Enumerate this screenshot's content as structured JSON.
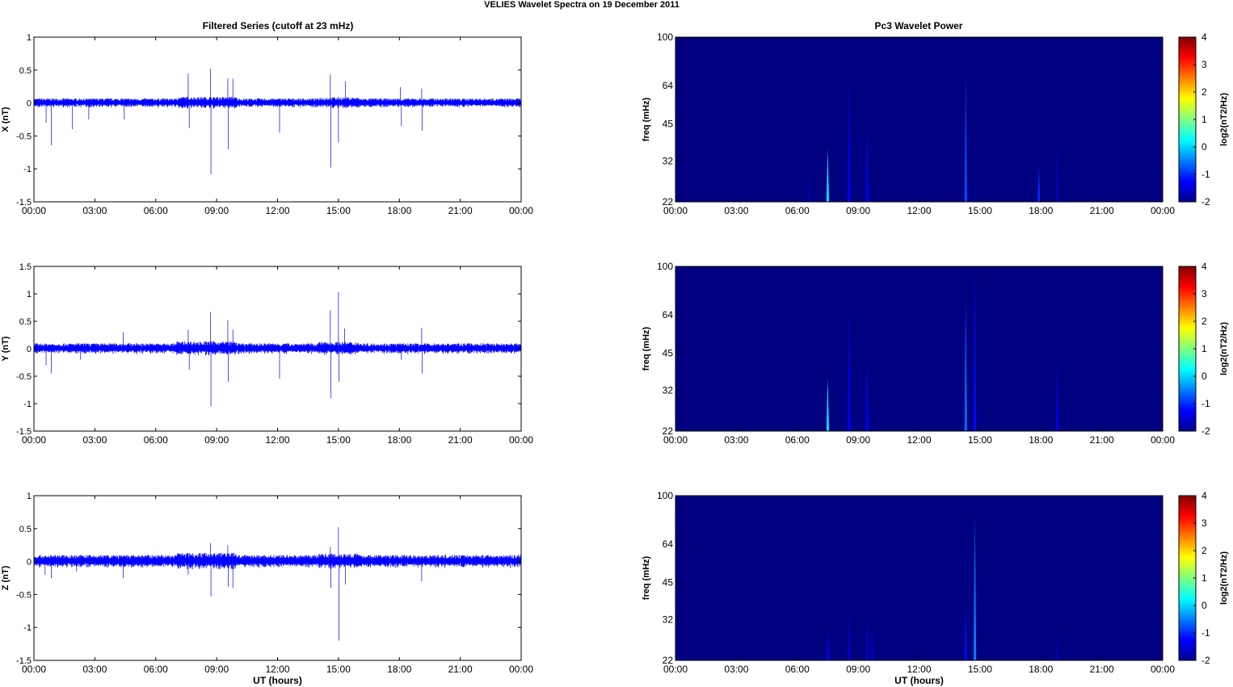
{
  "figure": {
    "title": "VELIES Wavelet Spectra on 19 December  2011",
    "left_column_title": "Filtered Series (cutoff at 23 mHz)",
    "right_column_title": "Pc3 Wavelet Power"
  },
  "colorbar": {
    "label": "log2(nT2/Hz)",
    "ticks": [
      "4",
      "3",
      "2",
      "1",
      "0",
      "-1",
      "-2"
    ],
    "range": [
      -2,
      4
    ],
    "colormap": "jet"
  },
  "colors": {
    "trace": "#0000ff",
    "background": "#00008f"
  },
  "chart_data": [
    {
      "type": "line",
      "title": "Filtered Series (cutoff at 23 mHz)",
      "xlabel": "",
      "ylabel": "X (nT)",
      "x_ticks": [
        "00:00",
        "03:00",
        "06:00",
        "09:00",
        "12:00",
        "15:00",
        "18:00",
        "21:00",
        "00:00"
      ],
      "y_ticks": [
        "1",
        "0.5",
        "0",
        "-0.5",
        "-1",
        "-1.5"
      ],
      "xlim_hours": [
        0,
        24
      ],
      "ylim": [
        -1.5,
        1
      ],
      "noise_band": 0.07,
      "spikes": [
        {
          "t": 0.6,
          "v": -0.3
        },
        {
          "t": 0.85,
          "v": -0.64
        },
        {
          "t": 1.9,
          "v": -0.4
        },
        {
          "t": 2.7,
          "v": -0.25
        },
        {
          "t": 4.45,
          "v": -0.25
        },
        {
          "t": 7.6,
          "v": 0.45
        },
        {
          "t": 7.65,
          "v": -0.38
        },
        {
          "t": 8.7,
          "v": 0.52
        },
        {
          "t": 8.72,
          "v": -1.08
        },
        {
          "t": 9.55,
          "v": 0.37
        },
        {
          "t": 9.57,
          "v": -0.7
        },
        {
          "t": 9.8,
          "v": 0.37
        },
        {
          "t": 12.1,
          "v": -0.45
        },
        {
          "t": 14.6,
          "v": 0.43
        },
        {
          "t": 14.62,
          "v": -0.98
        },
        {
          "t": 15.0,
          "v": -0.6
        },
        {
          "t": 15.35,
          "v": 0.33
        },
        {
          "t": 18.05,
          "v": 0.24
        },
        {
          "t": 18.1,
          "v": -0.35
        },
        {
          "t": 19.1,
          "v": 0.22
        },
        {
          "t": 19.12,
          "v": -0.42
        }
      ]
    },
    {
      "type": "heatmap",
      "title": "Pc3 Wavelet Power",
      "xlabel": "",
      "ylabel": "freq (mHz)",
      "x_ticks": [
        "00:00",
        "03:00",
        "06:00",
        "09:00",
        "12:00",
        "15:00",
        "18:00",
        "21:00",
        "00:00"
      ],
      "y_ticks": [
        "100",
        "64",
        "45",
        "32",
        "22"
      ],
      "xlim_hours": [
        0,
        24
      ],
      "ylim_mHz": [
        22,
        100
      ],
      "yscale": "log",
      "background_level": -2,
      "features": [
        {
          "t": 6.6,
          "f_top": 30,
          "level": -1.7
        },
        {
          "t": 7.5,
          "f_top": 36,
          "level": 0.1
        },
        {
          "t": 8.55,
          "f_top": 70,
          "level": -1.3
        },
        {
          "t": 9.45,
          "f_top": 43,
          "level": -1.3
        },
        {
          "t": 14.3,
          "f_top": 70,
          "level": -0.8
        },
        {
          "t": 17.9,
          "f_top": 31,
          "level": -1.0
        },
        {
          "t": 18.8,
          "f_top": 40,
          "level": -1.6
        }
      ]
    },
    {
      "type": "line",
      "title": "",
      "xlabel": "",
      "ylabel": "Y (nT)",
      "x_ticks": [
        "00:00",
        "03:00",
        "06:00",
        "09:00",
        "12:00",
        "15:00",
        "18:00",
        "21:00",
        "00:00"
      ],
      "y_ticks": [
        "1.5",
        "1",
        "0.5",
        "0",
        "-0.5",
        "-1",
        "-1.5"
      ],
      "xlim_hours": [
        0,
        24
      ],
      "ylim": [
        -1.5,
        1.5
      ],
      "noise_band": 0.1,
      "spikes": [
        {
          "t": 0.6,
          "v": -0.3
        },
        {
          "t": 0.85,
          "v": -0.45
        },
        {
          "t": 2.3,
          "v": -0.2
        },
        {
          "t": 4.4,
          "v": 0.3
        },
        {
          "t": 7.6,
          "v": 0.35
        },
        {
          "t": 7.65,
          "v": -0.38
        },
        {
          "t": 8.7,
          "v": 0.67
        },
        {
          "t": 8.72,
          "v": -1.05
        },
        {
          "t": 9.55,
          "v": 0.52
        },
        {
          "t": 9.57,
          "v": -0.6
        },
        {
          "t": 9.8,
          "v": 0.35
        },
        {
          "t": 12.1,
          "v": -0.55
        },
        {
          "t": 14.6,
          "v": 0.7
        },
        {
          "t": 14.62,
          "v": -0.9
        },
        {
          "t": 15.0,
          "v": 1.03
        },
        {
          "t": 15.02,
          "v": -0.6
        },
        {
          "t": 15.3,
          "v": 0.37
        },
        {
          "t": 18.1,
          "v": -0.2
        },
        {
          "t": 19.1,
          "v": 0.38
        },
        {
          "t": 19.12,
          "v": -0.45
        }
      ]
    },
    {
      "type": "heatmap",
      "title": "",
      "xlabel": "",
      "ylabel": "freq (mHz)",
      "x_ticks": [
        "00:00",
        "03:00",
        "06:00",
        "09:00",
        "12:00",
        "15:00",
        "18:00",
        "21:00",
        "00:00"
      ],
      "y_ticks": [
        "100",
        "64",
        "45",
        "32",
        "22"
      ],
      "xlim_hours": [
        0,
        24
      ],
      "ylim_mHz": [
        22,
        100
      ],
      "yscale": "log",
      "background_level": -2,
      "features": [
        {
          "t": 7.5,
          "f_top": 36,
          "level": 0.1
        },
        {
          "t": 8.55,
          "f_top": 70,
          "level": -1.3
        },
        {
          "t": 9.45,
          "f_top": 43,
          "level": -1.3
        },
        {
          "t": 14.3,
          "f_top": 72,
          "level": -0.6
        },
        {
          "t": 14.75,
          "f_top": 100,
          "level": -1.2
        },
        {
          "t": 18.8,
          "f_top": 43,
          "level": -1.4
        }
      ]
    },
    {
      "type": "line",
      "title": "",
      "xlabel": "UT (hours)",
      "ylabel": "Z (nT)",
      "x_ticks": [
        "00:00",
        "03:00",
        "06:00",
        "09:00",
        "12:00",
        "15:00",
        "18:00",
        "21:00",
        "00:00"
      ],
      "y_ticks": [
        "1",
        "0.5",
        "0",
        "-0.5",
        "-1",
        "-1.5"
      ],
      "xlim_hours": [
        0,
        24
      ],
      "ylim": [
        -1.5,
        1
      ],
      "noise_band": 0.1,
      "spikes": [
        {
          "t": 0.55,
          "v": -0.2
        },
        {
          "t": 0.85,
          "v": -0.25
        },
        {
          "t": 2.1,
          "v": -0.15
        },
        {
          "t": 4.4,
          "v": -0.25
        },
        {
          "t": 7.6,
          "v": -0.2
        },
        {
          "t": 8.7,
          "v": 0.28
        },
        {
          "t": 8.72,
          "v": -0.53
        },
        {
          "t": 9.55,
          "v": 0.25
        },
        {
          "t": 9.57,
          "v": -0.38
        },
        {
          "t": 9.8,
          "v": -0.4
        },
        {
          "t": 14.6,
          "v": 0.22
        },
        {
          "t": 14.62,
          "v": -0.4
        },
        {
          "t": 15.0,
          "v": 0.52
        },
        {
          "t": 15.02,
          "v": -1.2
        },
        {
          "t": 15.35,
          "v": -0.35
        },
        {
          "t": 19.1,
          "v": -0.3
        }
      ]
    },
    {
      "type": "heatmap",
      "title": "",
      "xlabel": "UT (hours)",
      "ylabel": "freq (mHz)",
      "x_ticks": [
        "00:00",
        "03:00",
        "06:00",
        "09:00",
        "12:00",
        "15:00",
        "18:00",
        "21:00",
        "00:00"
      ],
      "y_ticks": [
        "100",
        "64",
        "45",
        "32",
        "22"
      ],
      "xlim_hours": [
        0,
        24
      ],
      "ylim_mHz": [
        22,
        100
      ],
      "yscale": "log",
      "background_level": -2,
      "features": [
        {
          "t": 7.5,
          "f_top": 29,
          "level": -1.3
        },
        {
          "t": 8.55,
          "f_top": 35,
          "level": -1.5
        },
        {
          "t": 9.45,
          "f_top": 33,
          "level": -1.5
        },
        {
          "t": 9.7,
          "f_top": 31,
          "level": -1.6
        },
        {
          "t": 14.3,
          "f_top": 37,
          "level": -1.2
        },
        {
          "t": 14.75,
          "f_top": 84,
          "level": -0.5
        },
        {
          "t": 18.8,
          "f_top": 28,
          "level": -1.7
        }
      ]
    }
  ]
}
